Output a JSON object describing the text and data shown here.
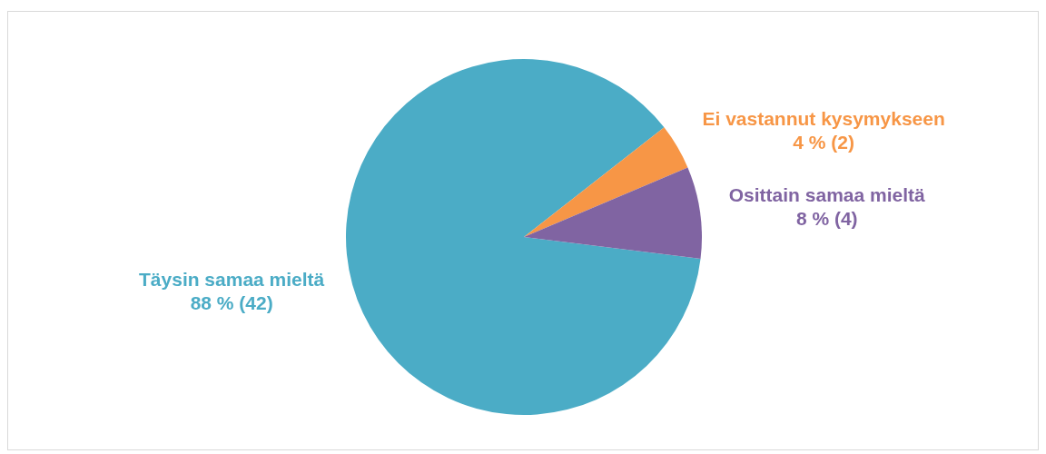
{
  "chart_data": {
    "type": "pie",
    "categories": [
      "Täysin samaa mieltä",
      "Ei vastannut kysymykseen",
      "Osittain samaa mieltä"
    ],
    "values": [
      42,
      2,
      4
    ],
    "value_labels": [
      "88 % (42)",
      "4 % (2)",
      "8 % (4)"
    ],
    "colors": [
      "#4bacc6",
      "#f79646",
      "#8064a2"
    ],
    "legend": false
  }
}
